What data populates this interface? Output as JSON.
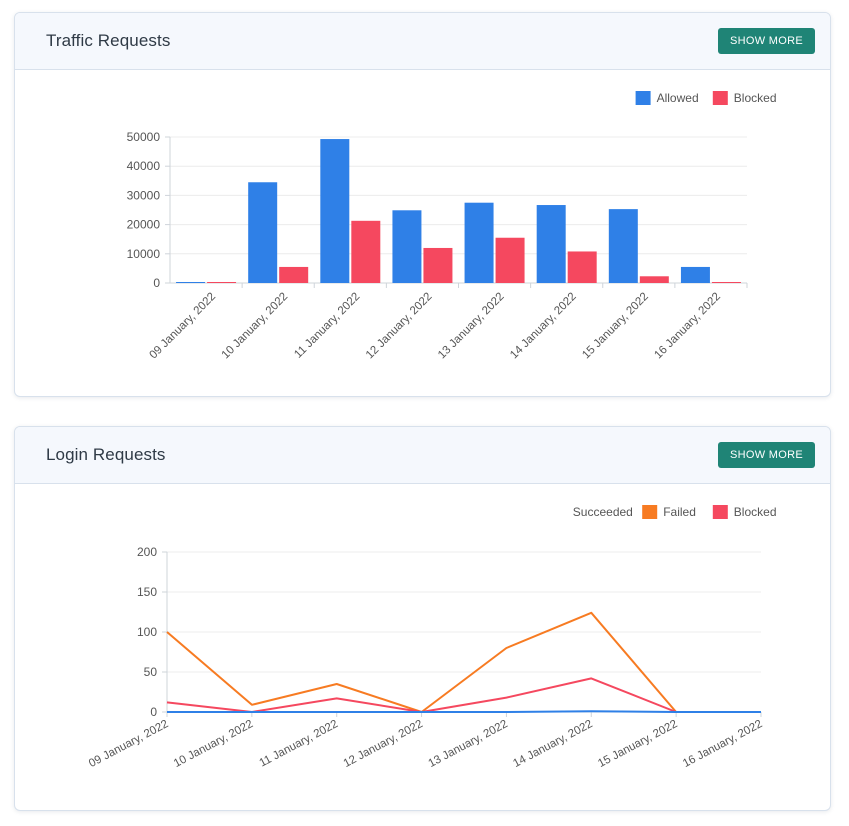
{
  "colors": {
    "allowed": "#2f80e7",
    "blocked": "#f5485f",
    "succeeded": "#2f80e7",
    "failed": "#f77b22",
    "button": "#1f8476"
  },
  "traffic": {
    "title": "Traffic Requests",
    "show_more": "SHOW MORE"
  },
  "login": {
    "title": "Login Requests",
    "show_more": "SHOW MORE"
  },
  "chart_data": [
    {
      "type": "bar",
      "title": "Traffic Requests",
      "categories": [
        "09 January, 2022",
        "10 January, 2022",
        "11 January, 2022",
        "12 January, 2022",
        "13 January, 2022",
        "14 January, 2022",
        "15 January, 2022",
        "16 January, 2022"
      ],
      "series": [
        {
          "name": "Allowed",
          "values": [
            300,
            34500,
            49300,
            24900,
            27500,
            26700,
            25300,
            5500
          ]
        },
        {
          "name": "Blocked",
          "values": [
            200,
            5500,
            21300,
            12000,
            15500,
            10800,
            2300,
            150
          ]
        }
      ],
      "ylim": [
        0,
        50000
      ],
      "yticks": [
        "0",
        "10000",
        "20000",
        "30000",
        "40000",
        "50000"
      ],
      "legend": "top-right"
    },
    {
      "type": "line",
      "title": "Login Requests",
      "categories": [
        "09 January, 2022",
        "10 January, 2022",
        "11 January, 2022",
        "12 January, 2022",
        "13 January, 2022",
        "14 January, 2022",
        "15 January, 2022",
        "16 January, 2022"
      ],
      "series": [
        {
          "name": "Succeeded",
          "values": [
            0,
            0,
            0,
            0,
            0,
            1,
            0,
            0
          ]
        },
        {
          "name": "Failed",
          "values": [
            100,
            9,
            35,
            0,
            80,
            124,
            0,
            0
          ]
        },
        {
          "name": "Blocked",
          "values": [
            12,
            0,
            17,
            0,
            18,
            42,
            0,
            0
          ]
        }
      ],
      "ylim": [
        0,
        200
      ],
      "yticks": [
        "0",
        "50",
        "100",
        "150",
        "200"
      ],
      "legend": "top-right"
    }
  ]
}
